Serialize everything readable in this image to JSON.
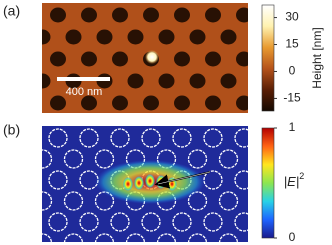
{
  "chart_data": [
    {
      "type": "heatmap",
      "panel_label": "(a)",
      "clim": [
        -22,
        37
      ],
      "cticks": [
        -15,
        0,
        15,
        30
      ],
      "colorbar_label": "Height [nm]",
      "colormap": [
        "#140800",
        "#5a1e05",
        "#b5521a",
        "#e89a30",
        "#fff2b0",
        "#ffffff"
      ],
      "annotations": [
        "400 nm"
      ]
    },
    {
      "type": "heatmap",
      "panel_label": "(b)",
      "clim": [
        0,
        1
      ],
      "cticks": [
        0,
        1
      ],
      "colorbar_label": [
        "|E|",
        "2"
      ],
      "colormap": [
        "#1a1a8c",
        "#1e64ff",
        "#28d2e6",
        "#8ce650",
        "#ffe61e",
        "#ff6414",
        "#b40000"
      ]
    }
  ]
}
